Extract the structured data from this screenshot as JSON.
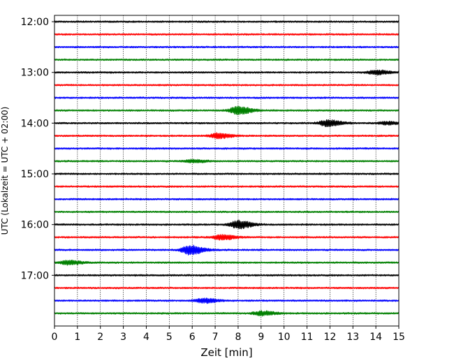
{
  "chart_data": {
    "type": "line",
    "title": "",
    "xlabel": "Zeit  [min]",
    "ylabel": "UTC (Lokalzeit = UTC + 02:00)",
    "xlim": [
      0,
      15
    ],
    "x_ticks": [
      "0",
      "1",
      "2",
      "3",
      "4",
      "5",
      "6",
      "7",
      "8",
      "9",
      "10",
      "11",
      "12",
      "13",
      "14",
      "15"
    ],
    "y_ticks": [
      "12:00",
      "13:00",
      "14:00",
      "15:00",
      "16:00",
      "17:00"
    ],
    "trace_interval_min": 15,
    "grid": "vertical dotted",
    "series": [
      {
        "start": "12:00",
        "color": "#000000",
        "events": []
      },
      {
        "start": "12:15",
        "color": "#ff0000",
        "events": []
      },
      {
        "start": "12:30",
        "color": "#0000ff",
        "events": []
      },
      {
        "start": "12:45",
        "color": "#008000",
        "events": []
      },
      {
        "start": "13:00",
        "color": "#000000",
        "events": [
          {
            "t": 14.0,
            "amp": 0.3
          }
        ]
      },
      {
        "start": "13:15",
        "color": "#ff0000",
        "events": []
      },
      {
        "start": "13:30",
        "color": "#0000ff",
        "events": []
      },
      {
        "start": "13:45",
        "color": "#008000",
        "events": [
          {
            "t": 8.0,
            "amp": 0.55
          }
        ]
      },
      {
        "start": "14:00",
        "color": "#000000",
        "events": [
          {
            "t": 11.9,
            "amp": 0.45
          },
          {
            "t": 14.5,
            "amp": 0.2
          }
        ]
      },
      {
        "start": "14:15",
        "color": "#ff0000",
        "events": [
          {
            "t": 7.1,
            "amp": 0.35
          }
        ]
      },
      {
        "start": "14:30",
        "color": "#0000ff",
        "events": []
      },
      {
        "start": "14:45",
        "color": "#008000",
        "events": [
          {
            "t": 6.0,
            "amp": 0.2
          }
        ]
      },
      {
        "start": "15:00",
        "color": "#000000",
        "events": []
      },
      {
        "start": "15:15",
        "color": "#ff0000",
        "events": []
      },
      {
        "start": "15:30",
        "color": "#0000ff",
        "events": []
      },
      {
        "start": "15:45",
        "color": "#008000",
        "events": []
      },
      {
        "start": "16:00",
        "color": "#000000",
        "events": [
          {
            "t": 8.0,
            "amp": 0.55
          }
        ]
      },
      {
        "start": "16:15",
        "color": "#ff0000",
        "events": [
          {
            "t": 7.3,
            "amp": 0.35
          }
        ]
      },
      {
        "start": "16:30",
        "color": "#0000ff",
        "events": [
          {
            "t": 5.9,
            "amp": 0.65
          }
        ]
      },
      {
        "start": "16:45",
        "color": "#008000",
        "events": [
          {
            "t": 0.6,
            "amp": 0.3
          }
        ]
      },
      {
        "start": "17:00",
        "color": "#000000",
        "events": []
      },
      {
        "start": "17:15",
        "color": "#ff0000",
        "events": []
      },
      {
        "start": "17:30",
        "color": "#0000ff",
        "events": [
          {
            "t": 6.5,
            "amp": 0.3
          }
        ]
      },
      {
        "start": "17:45",
        "color": "#008000",
        "events": [
          {
            "t": 9.0,
            "amp": 0.3
          }
        ]
      }
    ]
  }
}
